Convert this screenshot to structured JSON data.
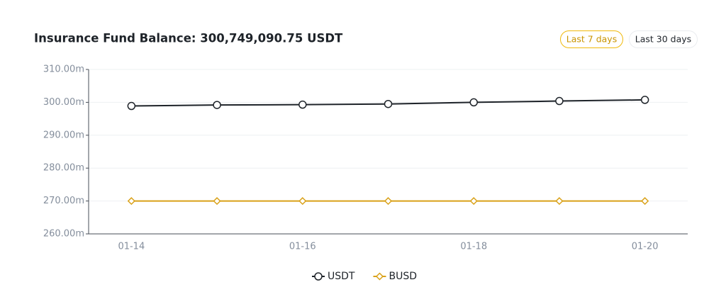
{
  "chart_data": {
    "type": "line",
    "title": "Insurance Fund Balance: 300,749,090.75 USDT",
    "categories": [
      "01-14",
      null,
      "01-16",
      null,
      "01-18",
      null,
      "01-20"
    ],
    "series": [
      {
        "name": "USDT",
        "color": "#1e2329",
        "marker": "circle",
        "values": [
          298.9,
          299.2,
          299.3,
          299.5,
          300.0,
          300.4,
          300.75
        ]
      },
      {
        "name": "BUSD",
        "color": "#d9a118",
        "marker": "diamond",
        "values": [
          270,
          270,
          270,
          270,
          270,
          270,
          270
        ]
      }
    ],
    "ylim": [
      260,
      310
    ],
    "yticks": [
      {
        "value": 260,
        "label": "260.00m"
      },
      {
        "value": 270,
        "label": "270.00m"
      },
      {
        "value": 280,
        "label": "280.00m"
      },
      {
        "value": 290,
        "label": "290.00m"
      },
      {
        "value": 300,
        "label": "300.00m"
      },
      {
        "value": 310,
        "label": "310.00m"
      }
    ],
    "grid": true,
    "legend": "bottom"
  },
  "buttons": [
    "Last 7 days",
    "Last 30 days"
  ]
}
